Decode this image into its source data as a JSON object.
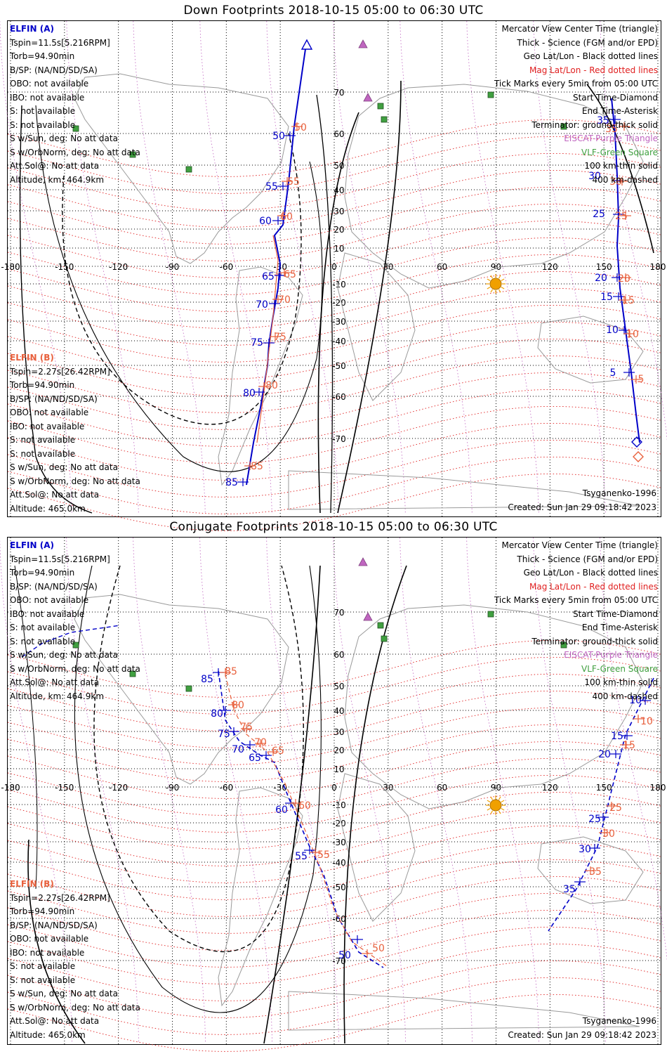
{
  "titles": {
    "down": "Down Footprints 2018-10-15 05:00 to 06:30 UTC",
    "conj": "Conjugate Footprints 2018-10-15 05:00 to 06:30 UTC"
  },
  "elfin_a": {
    "header": "ELFIN (A)",
    "lines": [
      "Tspin=11.5s[5.216RPM]",
      "Torb=94.90min",
      "B/SP: (NA/ND/SD/SA)",
      "OBO: not available",
      "IBO: not available",
      "S: not available",
      "S: not available",
      "S w/Sun, deg: No att data",
      "S w/OrbNorm, deg: No att data",
      "Att.Sol@: No att data",
      "Altitude, km: 464.9km"
    ]
  },
  "elfin_b": {
    "header": "ELFIN (B)",
    "lines": [
      "Tspin=2.27s[26.42RPM]",
      "Torb=94.90min",
      "B/SP: (NA/ND/SD/SA)",
      "OBO: not available",
      "IBO: not available",
      "S: not available",
      "S: not available",
      "S w/Sun, deg: No att data",
      "S w/OrbNorm, deg: No att data",
      "Att.Sol@: No att data",
      "Altitude: 465.0km"
    ]
  },
  "legend": {
    "l1": "Mercator View Center Time (triangle)",
    "l2": "Thick - Science (FGM and/or EPD)",
    "l3": "Geo Lat/Lon - Black dotted lines",
    "l4": "Mag Lat/Lon - Red dotted lines",
    "l5": "Tick Marks every 5min from 05:00 UTC",
    "l6": "Start Time-Diamond",
    "l7": "End Time-Asterisk",
    "l8": "Terminator: ground-thick solid",
    "l9": "EISCAT-Purple Triangle",
    "l10": "VLF-Green Square",
    "l11": "100 km-thin solid",
    "l12": "400 km-dashed"
  },
  "model": "Tsyganenko-1996",
  "created": "Created: Sun Jan 29 09:18:42 2023",
  "map": {
    "lon_ticks": [
      "-180",
      "-150",
      "-120",
      "-90",
      "-60",
      "-30",
      "0",
      "30",
      "60",
      "90",
      "120",
      "150",
      "180"
    ],
    "lat_ticks": [
      "70",
      "60",
      "50",
      "40",
      "30",
      "20",
      "10",
      "-10",
      "-20",
      "-30",
      "-40",
      "-50",
      "-60",
      "-70"
    ],
    "colors": {
      "elfin_a": "#0000c8",
      "elfin_b": "#e8603c",
      "mag": "#e02020",
      "eiscat": "#c066c0",
      "vlf": "#40a040",
      "sun": "#f0a000"
    }
  },
  "down_track": {
    "a_labels": [
      "35",
      "30",
      "25",
      "20",
      "15",
      "10",
      "5",
      "50",
      "55",
      "60",
      "65",
      "70",
      "75",
      "80",
      "85"
    ],
    "b_labels": [
      "35",
      "30",
      "25",
      "20",
      "15",
      "10",
      "5",
      "50",
      "55",
      "60",
      "65",
      "70",
      "75",
      "80",
      "85"
    ]
  },
  "conj_track": {
    "a_labels": [
      "10",
      "15",
      "20",
      "25",
      "30",
      "35",
      "85",
      "80",
      "75",
      "70",
      "65",
      "60",
      "55",
      "50"
    ],
    "b_labels": [
      "10",
      "15",
      "20",
      "25",
      "30",
      "35",
      "85",
      "80",
      "75",
      "70",
      "65",
      "60",
      "55",
      "50"
    ]
  }
}
